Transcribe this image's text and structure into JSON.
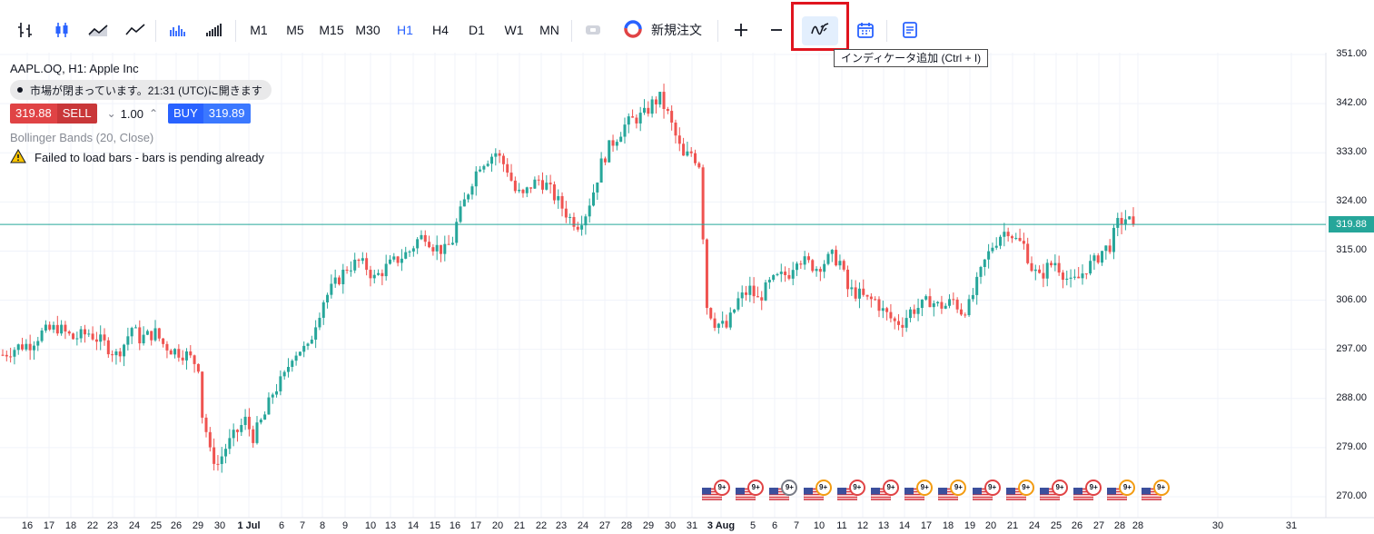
{
  "toolbar": {
    "timeframes": [
      "M1",
      "M5",
      "M15",
      "M30",
      "H1",
      "H4",
      "D1",
      "W1",
      "MN"
    ],
    "active_timeframe": "H1",
    "new_order_label": "新規注文",
    "icons": [
      "bars-chart-icon",
      "candles-chart-icon",
      "area-chart-icon",
      "line-chart-icon",
      "volume-bars-icon",
      "volume-ticks-icon",
      "one-click-trading-icon",
      "new-order-logo-icon",
      "zoom-in-icon",
      "zoom-out-icon",
      "indicators-icon",
      "calendar-icon",
      "news-icon"
    ],
    "tooltip": "インディケータ追加 (Ctrl + I)"
  },
  "legend": {
    "symbol": "AAPL.OQ, H1: Apple Inc",
    "market_status": "市場が閉まっています。21:31 (UTC)に開きます",
    "sell_price": "319.88",
    "sell_label": "SELL",
    "quantity": "1.00",
    "buy_label": "BUY",
    "buy_price": "319.89",
    "indicator": "Bollinger Bands (20, Close)",
    "error": "Failed to load bars - bars is pending already"
  },
  "price_axis": {
    "labels": [
      "351.00",
      "342.00",
      "333.00",
      "324.00",
      "315.00",
      "306.00",
      "297.00",
      "288.00",
      "279.00",
      "270.00"
    ],
    "current_price": "319.88"
  },
  "time_axis": {
    "labels": [
      "16",
      "17",
      "18",
      "22",
      "23",
      "24",
      "25",
      "26",
      "29",
      "30",
      "1 Jul",
      "6",
      "7",
      "8",
      "9",
      "10",
      "13",
      "14",
      "15",
      "16",
      "17",
      "20",
      "21",
      "22",
      "23",
      "24",
      "27",
      "28",
      "29",
      "30",
      "31",
      "3 Aug",
      "5",
      "6",
      "7",
      "10",
      "11",
      "12",
      "13",
      "14",
      "17",
      "18",
      "19",
      "20",
      "21",
      "24",
      "25",
      "26",
      "27",
      "28",
      "28",
      "30",
      "31"
    ]
  },
  "events": {
    "badge_label": "9+",
    "count": 14
  },
  "colors": {
    "up": "#26a69a",
    "down": "#ef5350",
    "price_line": "#26a69a",
    "accent": "#2962ff",
    "highlight": "#e0141e"
  },
  "chart_data": {
    "type": "candlestick",
    "symbol": "AAPL.OQ",
    "timeframe": "H1",
    "ylim": [
      268,
      353
    ],
    "last_price": 319.88,
    "close_path": [
      [
        0,
        296
      ],
      [
        4,
        297.5
      ],
      [
        7,
        298
      ],
      [
        10,
        300
      ],
      [
        14,
        301
      ],
      [
        18,
        299
      ],
      [
        22,
        300
      ],
      [
        26,
        298
      ],
      [
        29,
        296
      ],
      [
        31,
        298
      ],
      [
        33,
        301
      ],
      [
        35,
        299
      ],
      [
        39,
        300
      ],
      [
        41,
        298
      ],
      [
        43,
        297
      ],
      [
        47,
        296
      ],
      [
        50,
        294
      ],
      [
        51,
        285
      ],
      [
        52,
        282
      ],
      [
        53,
        278
      ],
      [
        55,
        276
      ],
      [
        57,
        279
      ],
      [
        60,
        282
      ],
      [
        62,
        284
      ],
      [
        64,
        281
      ],
      [
        67,
        285
      ],
      [
        69,
        289
      ],
      [
        72,
        292
      ],
      [
        74,
        296
      ],
      [
        76,
        297
      ],
      [
        78,
        297
      ],
      [
        80,
        302
      ],
      [
        82,
        306
      ],
      [
        85,
        309
      ],
      [
        88,
        312
      ],
      [
        91,
        313
      ],
      [
        93,
        312
      ],
      [
        95,
        310
      ],
      [
        98,
        312
      ],
      [
        100,
        313
      ],
      [
        102,
        314
      ],
      [
        104,
        315
      ],
      [
        106,
        317
      ],
      [
        108,
        318
      ],
      [
        110,
        316
      ],
      [
        113,
        315
      ],
      [
        115,
        317
      ],
      [
        116,
        320
      ],
      [
        118,
        324
      ],
      [
        120,
        328
      ],
      [
        122,
        331
      ],
      [
        124,
        332
      ],
      [
        126,
        333
      ],
      [
        129,
        330
      ],
      [
        131,
        326
      ],
      [
        133,
        325
      ],
      [
        135,
        327
      ],
      [
        137,
        328
      ],
      [
        139,
        327
      ],
      [
        141,
        325
      ],
      [
        143,
        323
      ],
      [
        145,
        321
      ],
      [
        147,
        320
      ],
      [
        149,
        322
      ],
      [
        151,
        326
      ],
      [
        153,
        331
      ],
      [
        155,
        334
      ],
      [
        157,
        336
      ],
      [
        159,
        338
      ],
      [
        161,
        339
      ],
      [
        164,
        340
      ],
      [
        166,
        342
      ],
      [
        168,
        343
      ],
      [
        170,
        340
      ],
      [
        172,
        336
      ],
      [
        174,
        332
      ],
      [
        176,
        333
      ],
      [
        178,
        331
      ],
      [
        180,
        305
      ],
      [
        182,
        302
      ],
      [
        185,
        301
      ],
      [
        188,
        306
      ],
      [
        191,
        308
      ],
      [
        193,
        306
      ],
      [
        196,
        309
      ],
      [
        198,
        310
      ],
      [
        201,
        311
      ],
      [
        203,
        314
      ],
      [
        205,
        313
      ],
      [
        208,
        312
      ],
      [
        210,
        313
      ],
      [
        212,
        314
      ],
      [
        214,
        313
      ],
      [
        216,
        308
      ],
      [
        219,
        307
      ],
      [
        221,
        306
      ],
      [
        223,
        306
      ],
      [
        225,
        304
      ],
      [
        228,
        302
      ],
      [
        230,
        302
      ],
      [
        232,
        304
      ],
      [
        235,
        305
      ],
      [
        237,
        306
      ],
      [
        239,
        305
      ],
      [
        241,
        305
      ],
      [
        243,
        306
      ],
      [
        245,
        304
      ],
      [
        247,
        305
      ],
      [
        249,
        309
      ],
      [
        251,
        313
      ],
      [
        253,
        316
      ],
      [
        255,
        318
      ],
      [
        257,
        319
      ],
      [
        259,
        317
      ],
      [
        261,
        316
      ],
      [
        263,
        312
      ],
      [
        265,
        310
      ],
      [
        267,
        312
      ],
      [
        269,
        313
      ],
      [
        271,
        311
      ],
      [
        273,
        309
      ],
      [
        275,
        310
      ],
      [
        277,
        312
      ],
      [
        279,
        313
      ],
      [
        281,
        315
      ],
      [
        283,
        316
      ],
      [
        285,
        320
      ],
      [
        287,
        321
      ],
      [
        289,
        319.88
      ]
    ]
  }
}
